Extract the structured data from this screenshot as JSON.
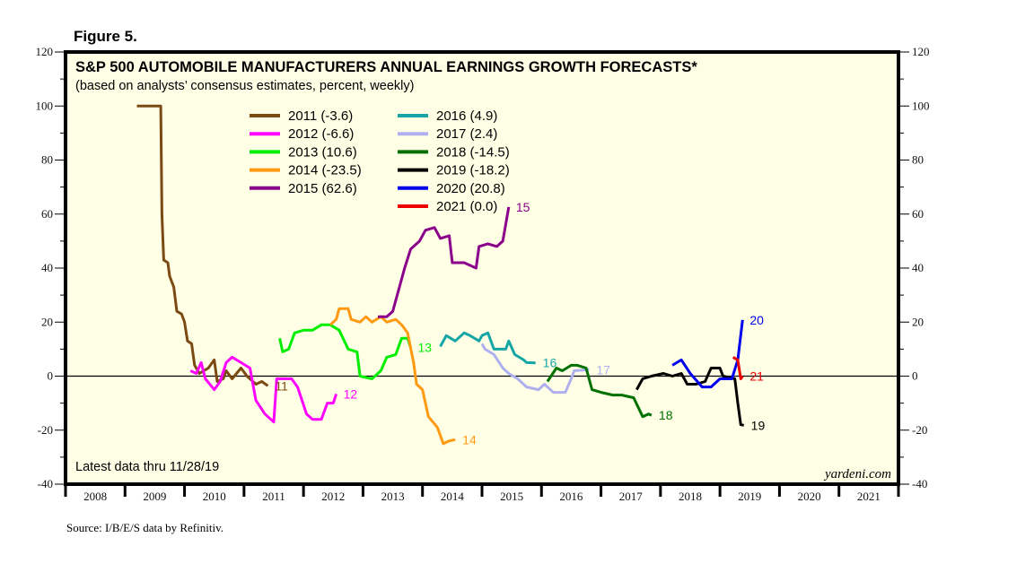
{
  "figure_label": "Figure 5.",
  "source": "Source: I/B/E/S data by Refinitiv.",
  "chart_data": {
    "type": "line",
    "title": "S&P 500 AUTOMOBILE MANUFACTURERS ANNUAL EARNINGS GROWTH FORECASTS*",
    "subtitle": "(based on analysts’ consensus estimates, percent, weekly)",
    "note": "Latest data thru 11/28/19",
    "brand": "yardeni.com",
    "xlabel": "",
    "ylabel": "",
    "xlim": [
      2008,
      2022
    ],
    "ylim": [
      -40,
      120
    ],
    "y_ticks_major": [
      -40,
      -20,
      0,
      20,
      40,
      60,
      80,
      100,
      120
    ],
    "y_ticks_minor": [
      -30,
      -10,
      10,
      30,
      50,
      70,
      90,
      110
    ],
    "x_tick_labels": [
      "2008",
      "2009",
      "2010",
      "2011",
      "2012",
      "2013",
      "2014",
      "2015",
      "2016",
      "2017",
      "2018",
      "2019",
      "2020",
      "2021"
    ],
    "zero_line": true,
    "grid": false,
    "legend_position": "top-center",
    "series": [
      {
        "name": "2011 (-3.6)",
        "end_label": "11",
        "color": "#7b4a12",
        "points": [
          [
            2009.2,
            100
          ],
          [
            2009.6,
            100
          ],
          [
            2009.62,
            60
          ],
          [
            2009.65,
            43
          ],
          [
            2009.72,
            42
          ],
          [
            2009.75,
            37
          ],
          [
            2009.82,
            33
          ],
          [
            2009.87,
            24
          ],
          [
            2009.95,
            23
          ],
          [
            2010.0,
            20
          ],
          [
            2010.05,
            13
          ],
          [
            2010.12,
            12
          ],
          [
            2010.17,
            4
          ],
          [
            2010.25,
            1
          ],
          [
            2010.4,
            3
          ],
          [
            2010.5,
            6
          ],
          [
            2010.55,
            -2
          ],
          [
            2010.65,
            -1
          ],
          [
            2010.7,
            2
          ],
          [
            2010.8,
            -1
          ],
          [
            2010.95,
            3
          ],
          [
            2011.05,
            0
          ],
          [
            2011.2,
            -3
          ],
          [
            2011.3,
            -2
          ],
          [
            2011.4,
            -3.6
          ]
        ]
      },
      {
        "name": "2012 (-6.6)",
        "end_label": "12",
        "color": "#ff00ff",
        "points": [
          [
            2010.1,
            2
          ],
          [
            2010.2,
            1
          ],
          [
            2010.28,
            5
          ],
          [
            2010.35,
            -1
          ],
          [
            2010.5,
            -5
          ],
          [
            2010.6,
            -2
          ],
          [
            2010.7,
            5
          ],
          [
            2010.8,
            7
          ],
          [
            2010.95,
            5
          ],
          [
            2011.1,
            3
          ],
          [
            2011.2,
            -9
          ],
          [
            2011.35,
            -14
          ],
          [
            2011.5,
            -17
          ],
          [
            2011.55,
            -1
          ],
          [
            2011.8,
            -1
          ],
          [
            2011.9,
            -4
          ],
          [
            2012.05,
            -14
          ],
          [
            2012.15,
            -16
          ],
          [
            2012.3,
            -16
          ],
          [
            2012.4,
            -10
          ],
          [
            2012.5,
            -10
          ],
          [
            2012.55,
            -6.6
          ]
        ]
      },
      {
        "name": "2013 (10.6)",
        "end_label": "13",
        "color": "#00ee00",
        "points": [
          [
            2011.6,
            14
          ],
          [
            2011.65,
            9
          ],
          [
            2011.75,
            10
          ],
          [
            2011.85,
            16
          ],
          [
            2012.0,
            17
          ],
          [
            2012.15,
            17
          ],
          [
            2012.3,
            19
          ],
          [
            2012.45,
            19
          ],
          [
            2012.6,
            17
          ],
          [
            2012.75,
            10
          ],
          [
            2012.9,
            9
          ],
          [
            2012.95,
            0
          ],
          [
            2013.15,
            -1
          ],
          [
            2013.3,
            2
          ],
          [
            2013.4,
            7
          ],
          [
            2013.55,
            8
          ],
          [
            2013.65,
            14
          ],
          [
            2013.75,
            14
          ],
          [
            2013.8,
            10.6
          ]
        ]
      },
      {
        "name": "2014 (-23.5)",
        "end_label": "14",
        "color": "#ff9912",
        "points": [
          [
            2012.45,
            19
          ],
          [
            2012.55,
            21
          ],
          [
            2012.6,
            25
          ],
          [
            2012.75,
            25
          ],
          [
            2012.8,
            21
          ],
          [
            2012.95,
            20
          ],
          [
            2013.05,
            22
          ],
          [
            2013.15,
            20
          ],
          [
            2013.3,
            22
          ],
          [
            2013.4,
            20
          ],
          [
            2013.55,
            21
          ],
          [
            2013.65,
            19
          ],
          [
            2013.75,
            16
          ],
          [
            2013.85,
            5
          ],
          [
            2013.9,
            -3
          ],
          [
            2014.0,
            -5
          ],
          [
            2014.1,
            -15
          ],
          [
            2014.25,
            -19
          ],
          [
            2014.35,
            -25
          ],
          [
            2014.45,
            -24
          ],
          [
            2014.55,
            -23.5
          ]
        ]
      },
      {
        "name": "2015 (62.6)",
        "end_label": "15",
        "color": "#8b008b",
        "points": [
          [
            2013.25,
            22
          ],
          [
            2013.4,
            22
          ],
          [
            2013.5,
            24
          ],
          [
            2013.6,
            32
          ],
          [
            2013.7,
            40
          ],
          [
            2013.8,
            47
          ],
          [
            2013.95,
            50
          ],
          [
            2014.05,
            54
          ],
          [
            2014.2,
            55
          ],
          [
            2014.3,
            51
          ],
          [
            2014.45,
            52
          ],
          [
            2014.5,
            42
          ],
          [
            2014.7,
            42
          ],
          [
            2014.9,
            40
          ],
          [
            2014.95,
            48
          ],
          [
            2015.1,
            49
          ],
          [
            2015.25,
            48
          ],
          [
            2015.35,
            50
          ],
          [
            2015.45,
            62.6
          ]
        ]
      },
      {
        "name": "2016 (4.9)",
        "end_label": "16",
        "color": "#17a6a6",
        "points": [
          [
            2014.3,
            11
          ],
          [
            2014.4,
            15
          ],
          [
            2014.55,
            13
          ],
          [
            2014.7,
            16
          ],
          [
            2014.8,
            15
          ],
          [
            2014.95,
            13
          ],
          [
            2015.0,
            15
          ],
          [
            2015.1,
            16
          ],
          [
            2015.2,
            10
          ],
          [
            2015.4,
            10
          ],
          [
            2015.45,
            13
          ],
          [
            2015.55,
            8
          ],
          [
            2015.7,
            6
          ],
          [
            2015.75,
            5
          ],
          [
            2015.9,
            4.9
          ]
        ]
      },
      {
        "name": "2017 (2.4)",
        "end_label": "17",
        "color": "#b0b0f0",
        "points": [
          [
            2015.0,
            12
          ],
          [
            2015.05,
            10
          ],
          [
            2015.2,
            8
          ],
          [
            2015.35,
            3
          ],
          [
            2015.45,
            1
          ],
          [
            2015.6,
            -1
          ],
          [
            2015.75,
            -4
          ],
          [
            2015.95,
            -5
          ],
          [
            2016.05,
            -3
          ],
          [
            2016.2,
            -6
          ],
          [
            2016.4,
            -6
          ],
          [
            2016.5,
            -1
          ],
          [
            2016.55,
            2
          ],
          [
            2016.8,
            2.4
          ]
        ]
      },
      {
        "name": "2018 (-14.5)",
        "end_label": "18",
        "color": "#007000",
        "points": [
          [
            2016.1,
            -2
          ],
          [
            2016.25,
            3
          ],
          [
            2016.35,
            2
          ],
          [
            2016.5,
            4
          ],
          [
            2016.6,
            4
          ],
          [
            2016.75,
            3
          ],
          [
            2016.85,
            -5
          ],
          [
            2017.0,
            -6
          ],
          [
            2017.2,
            -7
          ],
          [
            2017.35,
            -7
          ],
          [
            2017.55,
            -8
          ],
          [
            2017.7,
            -15
          ],
          [
            2017.8,
            -14
          ],
          [
            2017.85,
            -14.5
          ]
        ]
      },
      {
        "name": "2019 (-18.2)",
        "end_label": "19",
        "color": "#000000",
        "points": [
          [
            2017.6,
            -5
          ],
          [
            2017.7,
            -1
          ],
          [
            2017.85,
            0
          ],
          [
            2018.05,
            1
          ],
          [
            2018.2,
            0
          ],
          [
            2018.35,
            1
          ],
          [
            2018.45,
            -3
          ],
          [
            2018.6,
            -3
          ],
          [
            2018.75,
            -2
          ],
          [
            2018.85,
            3
          ],
          [
            2019.0,
            3
          ],
          [
            2019.05,
            0
          ],
          [
            2019.25,
            -1
          ],
          [
            2019.3,
            -10
          ],
          [
            2019.35,
            -18
          ],
          [
            2019.4,
            -18.2
          ]
        ]
      },
      {
        "name": "2020 (20.8)",
        "end_label": "20",
        "color": "#0000ee",
        "points": [
          [
            2018.2,
            4
          ],
          [
            2018.35,
            6
          ],
          [
            2018.5,
            1
          ],
          [
            2018.7,
            -4
          ],
          [
            2018.85,
            -4
          ],
          [
            2019.0,
            -1
          ],
          [
            2019.2,
            -1
          ],
          [
            2019.3,
            6
          ],
          [
            2019.38,
            20.8
          ]
        ]
      },
      {
        "name": "2021 (0.0)",
        "end_label": "21",
        "color": "#ee0000",
        "points": [
          [
            2019.22,
            7
          ],
          [
            2019.3,
            6
          ],
          [
            2019.35,
            -1
          ],
          [
            2019.38,
            0.0
          ]
        ]
      }
    ]
  }
}
